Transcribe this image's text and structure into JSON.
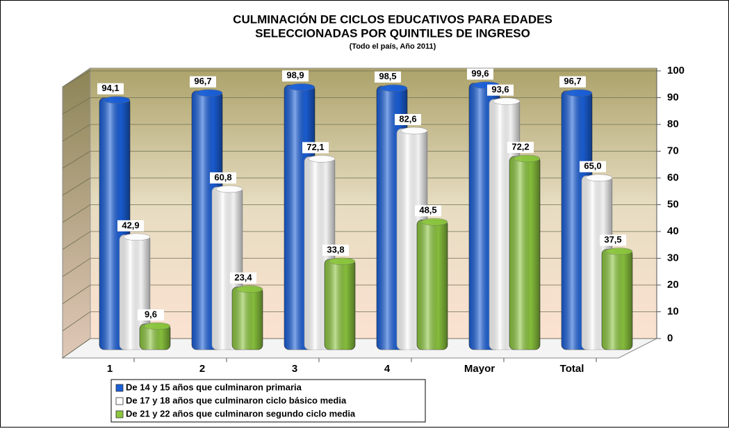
{
  "chart_data": {
    "type": "bar",
    "title": "CULMINACIÓN DE CICLOS EDUCATIVOS PARA EDADES",
    "title_line2": "SELECCIONADAS POR QUINTILES DE INGRESO",
    "subtitle": "(Todo el país, Año 2011)",
    "categories": [
      "1",
      "2",
      "3",
      "4",
      "Mayor",
      "Total"
    ],
    "series": [
      {
        "name": "De 14 y 15 años que culminaron primaria",
        "color": "#1a5fd8",
        "values": [
          94.1,
          96.7,
          98.9,
          98.5,
          99.6,
          96.7
        ],
        "value_labels": [
          "94,1",
          "96,7",
          "98,9",
          "98,5",
          "99,6",
          "96,7"
        ]
      },
      {
        "name": "De 17 y 18 años que culminaron ciclo básico media",
        "color": "#ffffff",
        "values": [
          42.9,
          60.8,
          72.1,
          82.6,
          93.6,
          65.0
        ],
        "value_labels": [
          "42,9",
          "60,8",
          "72,1",
          "82,6",
          "93,6",
          "65,0"
        ]
      },
      {
        "name": "De 21 y 22 años que culminaron segundo ciclo media",
        "color": "#8cc63e",
        "values": [
          9.6,
          23.4,
          33.8,
          48.5,
          72.2,
          37.5
        ],
        "value_labels": [
          "9,6",
          "23,4",
          "33,8",
          "48,5",
          "72,2",
          "37,5"
        ]
      }
    ],
    "ylim": [
      0,
      100
    ],
    "yticks": [
      0,
      10,
      20,
      30,
      40,
      50,
      60,
      70,
      80,
      90,
      100
    ],
    "grid": true
  }
}
